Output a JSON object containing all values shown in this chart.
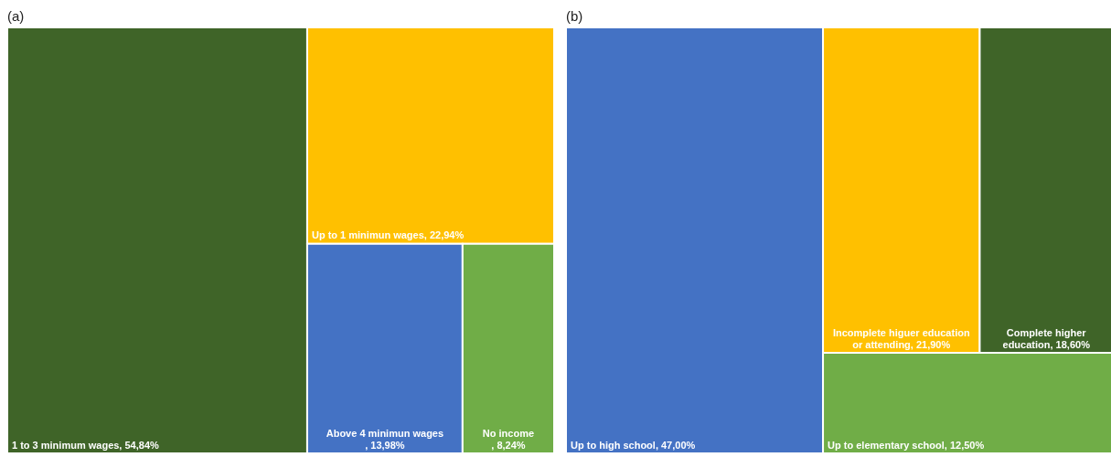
{
  "chart_data": [
    {
      "type": "other",
      "title": "(a)",
      "categories": [
        "1 to 3 minimum wages",
        "Up to 1 minimun wages",
        "Above 4 minimun wages",
        "No income"
      ],
      "values": [
        54.84,
        22.94,
        13.98,
        8.24
      ],
      "value_labels": [
        ", 54,84%",
        ", 22,94%",
        ", 13,98%",
        ", 8,24%"
      ],
      "colors": [
        "#3f6428",
        "#ffc000",
        "#4472c4",
        "#70ad47"
      ]
    },
    {
      "type": "other",
      "title": "(b)",
      "categories": [
        "Up to high school",
        "Incomplete higuer education or attending",
        "Complete higher education",
        "Up to elementary school"
      ],
      "values": [
        47.0,
        21.9,
        18.6,
        12.5
      ],
      "value_labels": [
        ", 47,00%",
        ", 21,90%",
        ", 18,60%",
        ", 12,50%"
      ],
      "colors": [
        "#4472c4",
        "#ffc000",
        "#3f6428",
        "#70ad47"
      ]
    }
  ]
}
